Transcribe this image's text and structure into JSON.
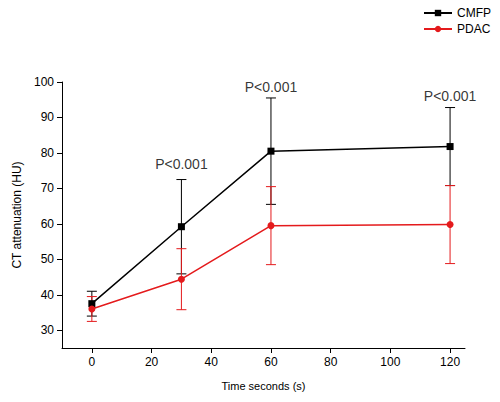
{
  "chart_data": {
    "type": "line",
    "x_label": "Time seconds (s)",
    "y_label": "CT attenuation (HU)",
    "xlim": [
      -10,
      125
    ],
    "xticks": [
      0,
      20,
      40,
      60,
      80,
      100,
      120
    ],
    "ylim": [
      25,
      100
    ],
    "yticks": [
      30,
      40,
      50,
      60,
      70,
      80,
      90,
      100
    ],
    "grid": false,
    "legend": "upper right",
    "x": [
      0,
      30,
      60,
      120
    ],
    "series": [
      {
        "name": "CMFP",
        "color": "#000000",
        "marker": "square",
        "values": [
          37.5,
          59.2,
          80.5,
          81.8
        ],
        "errors": [
          3.5,
          13.3,
          15.0,
          11.0
        ]
      },
      {
        "name": "PDAC",
        "color": "#e41a1c",
        "marker": "circle",
        "values": [
          36.0,
          44.4,
          59.5,
          59.8
        ],
        "errors": [
          3.5,
          8.6,
          11.0,
          11.0
        ]
      }
    ],
    "annotations": [
      {
        "text": "P<0.001",
        "x": 30,
        "y": 77
      },
      {
        "text": "P<0.001",
        "x": 60,
        "y": 98.5
      },
      {
        "text": "P<0.001",
        "x": 120,
        "y": 96
      }
    ]
  }
}
